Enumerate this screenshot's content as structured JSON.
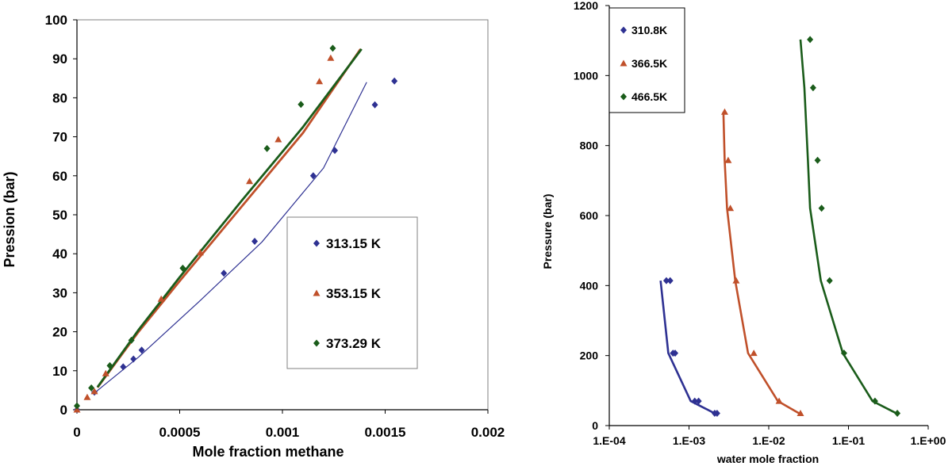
{
  "chart_data": [
    {
      "type": "scatter",
      "title": "",
      "xlabel": "Mole fraction methane",
      "ylabel": "Pression (bar)",
      "xlim": [
        0,
        0.002
      ],
      "ylim": [
        0,
        100
      ],
      "x_tick_labels": [
        "0",
        "0.0005",
        "0.001",
        "0.0015",
        "0.002"
      ],
      "y_tick_labels": [
        "0",
        "10",
        "20",
        "30",
        "40",
        "50",
        "60",
        "70",
        "80",
        "90",
        "100"
      ],
      "legend_position": "center-right",
      "series": [
        {
          "name": "313.15 K",
          "color": "#2E3192",
          "marker": "diamond",
          "points": [
            [
              0,
              0
            ],
            [
              8.5e-05,
              4.5
            ],
            [
              0.000225,
              11
            ],
            [
              0.000275,
              13
            ],
            [
              0.000315,
              15.3
            ],
            [
              0.000715,
              35
            ],
            [
              0.000865,
              43.2
            ],
            [
              0.00115,
              60
            ],
            [
              0.001255,
              66.5
            ],
            [
              0.00145,
              78.2
            ],
            [
              0.001545,
              84.3
            ]
          ],
          "model": [
            [
              9e-05,
              4.5
            ],
            [
              0.0003,
              13.5
            ],
            [
              0.0006,
              28
            ],
            [
              0.0009,
              43
            ],
            [
              0.0012,
              62
            ],
            [
              0.00141,
              84
            ]
          ]
        },
        {
          "name": "353.15 K",
          "color": "#C0502A",
          "marker": "triangle",
          "points": [
            [
              0,
              0
            ],
            [
              5e-05,
              3.2
            ],
            [
              8.5e-05,
              4.7
            ],
            [
              0.00014,
              9.3
            ],
            [
              0.00041,
              28.4
            ],
            [
              0.0006,
              40.3
            ],
            [
              0.00084,
              58.6
            ],
            [
              0.00098,
              69.3
            ],
            [
              0.00118,
              84.2
            ],
            [
              0.001235,
              90.2
            ]
          ],
          "model": [
            [
              0.0001,
              5.7
            ],
            [
              0.0003,
              20
            ],
            [
              0.0005,
              33
            ],
            [
              0.0008,
              52
            ],
            [
              0.0011,
              71
            ],
            [
              0.00138,
              92.5
            ]
          ]
        },
        {
          "name": "373.29 K",
          "color": "#1A5C1A",
          "marker": "diamond",
          "points": [
            [
              0,
              1
            ],
            [
              7e-05,
              5.6
            ],
            [
              0.00016,
              11.3
            ],
            [
              0.000265,
              17.8
            ],
            [
              0.000515,
              36.3
            ],
            [
              0.000925,
              67
            ],
            [
              0.00109,
              78.3
            ],
            [
              0.001245,
              92.7
            ]
          ],
          "model": [
            [
              0.0001,
              5.8
            ],
            [
              0.0003,
              20.5
            ],
            [
              0.0005,
              34
            ],
            [
              0.0008,
              53.5
            ],
            [
              0.0011,
              72.5
            ],
            [
              0.001385,
              92.5
            ]
          ]
        }
      ]
    },
    {
      "type": "scatter",
      "title": "",
      "xlabel": "water mole fraction",
      "ylabel": "Pressure (bar)",
      "xscale": "log",
      "xlim": [
        0.0001,
        1
      ],
      "ylim": [
        0,
        1200
      ],
      "x_tick_labels": [
        "1.E-04",
        "1.E-03",
        "1.E-02",
        "1.E-01",
        "1.E+00"
      ],
      "y_tick_labels": [
        "0",
        "200",
        "400",
        "600",
        "800",
        "1000",
        "1200"
      ],
      "legend_position": "top-left",
      "series": [
        {
          "name": "310.8K",
          "color": "#2E3192",
          "marker": "diamond",
          "points": [
            [
              0.00052,
              414
            ],
            [
              0.00058,
              414
            ],
            [
              0.00063,
              207
            ],
            [
              0.00067,
              207
            ],
            [
              0.00118,
              70
            ],
            [
              0.00132,
              70
            ],
            [
              0.0021,
              35
            ],
            [
              0.00225,
              35
            ]
          ],
          "model": [
            [
              0.00044,
              414
            ],
            [
              0.00055,
              207
            ],
            [
              0.00105,
              70
            ],
            [
              0.0021,
              35
            ]
          ]
        },
        {
          "name": "366.5K",
          "color": "#C0502A",
          "marker": "triangle",
          "points": [
            [
              0.0028,
              896
            ],
            [
              0.0031,
              758
            ],
            [
              0.0033,
              621
            ],
            [
              0.0039,
              414
            ],
            [
              0.0065,
              207
            ],
            [
              0.0135,
              70
            ],
            [
              0.025,
              35
            ]
          ],
          "model": [
            [
              0.0027,
              896
            ],
            [
              0.0028,
              758
            ],
            [
              0.003,
              621
            ],
            [
              0.0038,
              414
            ],
            [
              0.0055,
              207
            ],
            [
              0.013,
              70
            ],
            [
              0.024,
              35
            ]
          ]
        },
        {
          "name": "466.5K",
          "color": "#1A5C1A",
          "marker": "diamond",
          "points": [
            [
              0.033,
              1103
            ],
            [
              0.036,
              965
            ],
            [
              0.041,
              758
            ],
            [
              0.046,
              621
            ],
            [
              0.058,
              414
            ],
            [
              0.088,
              207
            ],
            [
              0.215,
              70
            ],
            [
              0.41,
              35
            ]
          ],
          "model": [
            [
              0.025,
              1103
            ],
            [
              0.028,
              965
            ],
            [
              0.031,
              758
            ],
            [
              0.033,
              621
            ],
            [
              0.045,
              414
            ],
            [
              0.085,
              207
            ],
            [
              0.2,
              70
            ],
            [
              0.4,
              35
            ]
          ]
        }
      ]
    }
  ]
}
